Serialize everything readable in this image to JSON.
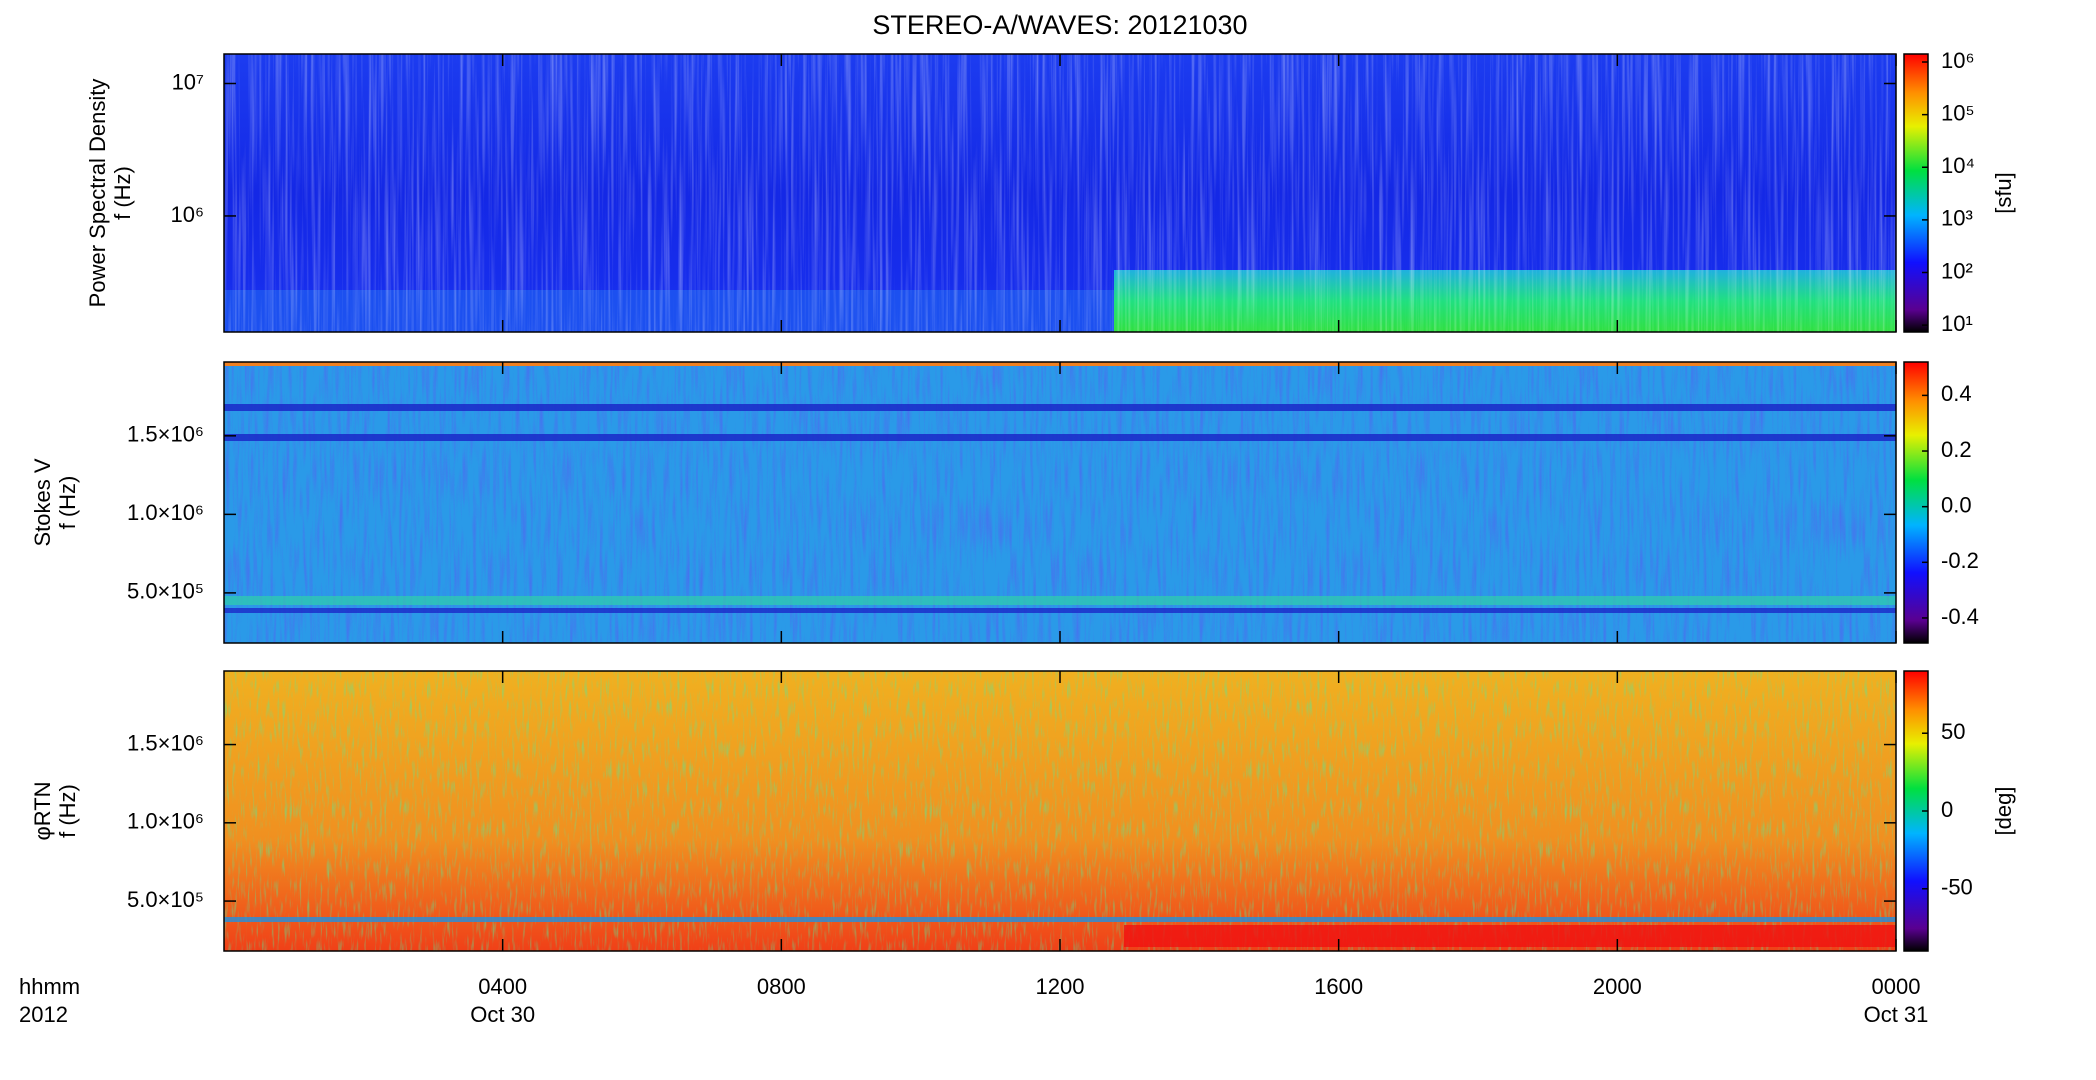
{
  "chart_data": [
    {
      "type": "heatmap",
      "title": "STEREO-A/WAVES: 20121030",
      "ylabel": [
        "Power Spectral Density",
        "f (Hz)"
      ],
      "log_y": true,
      "ylim": [
        133000,
        16700000
      ],
      "yticks": [
        {
          "value": 1000000,
          "label": "10⁶"
        },
        {
          "value": 10000000,
          "label": "10⁷"
        }
      ],
      "xlim": [
        0,
        24
      ],
      "xticks": [
        4,
        8,
        12,
        16,
        20,
        24
      ],
      "colorbar": {
        "label": "[sfu]",
        "log": true,
        "clim": [
          7.4,
          1420000
        ],
        "ticks": [
          {
            "value": 10,
            "label": "10¹"
          },
          {
            "value": 100,
            "label": "10²"
          },
          {
            "value": 1000,
            "label": "10³"
          },
          {
            "value": 10000,
            "label": "10⁴"
          },
          {
            "value": 100000,
            "label": "10⁵"
          },
          {
            "value": 1000000,
            "label": "10⁶"
          }
        ]
      }
    },
    {
      "type": "heatmap",
      "ylabel": [
        "Stokes V",
        "f (Hz)"
      ],
      "log_y": false,
      "ylim": [
        181000,
        1970000
      ],
      "yticks": [
        {
          "value": 500000,
          "label": "5.0×10⁵"
        },
        {
          "value": 1000000,
          "label": "1.0×10⁶"
        },
        {
          "value": 1500000,
          "label": "1.5×10⁶"
        }
      ],
      "xlim": [
        0,
        24
      ],
      "xticks": [
        4,
        8,
        12,
        16,
        20,
        24
      ],
      "colorbar": {
        "log": false,
        "clim": [
          -0.49,
          0.52
        ],
        "ticks": [
          -0.4,
          -0.2,
          {
            "value": 0,
            "label": "0.0"
          },
          0.2,
          0.4
        ]
      }
    },
    {
      "type": "heatmap",
      "ylabel": [
        "φRTN",
        "f (Hz)"
      ],
      "log_y": false,
      "ylim": [
        181000,
        1970000
      ],
      "yticks": [
        {
          "value": 500000,
          "label": "5.0×10⁵"
        },
        {
          "value": 1000000,
          "label": "1.0×10⁶"
        },
        {
          "value": 1500000,
          "label": "1.5×10⁶"
        }
      ],
      "xlim": [
        0,
        24
      ],
      "xlabel": [
        "hhmm",
        "2012"
      ],
      "xticks": [
        {
          "value": 4,
          "label": "0400",
          "date": "Oct 30"
        },
        {
          "value": 8,
          "label": "0800"
        },
        {
          "value": 12,
          "label": "1200"
        },
        {
          "value": 16,
          "label": "1600"
        },
        {
          "value": 20,
          "label": "2000"
        },
        {
          "value": 24,
          "label": "0000",
          "date": "Oct 31"
        }
      ],
      "colorbar": {
        "label": "[deg]",
        "log": false,
        "clim": [
          -90,
          90
        ],
        "ticks": [
          -50,
          0,
          50
        ]
      }
    }
  ]
}
